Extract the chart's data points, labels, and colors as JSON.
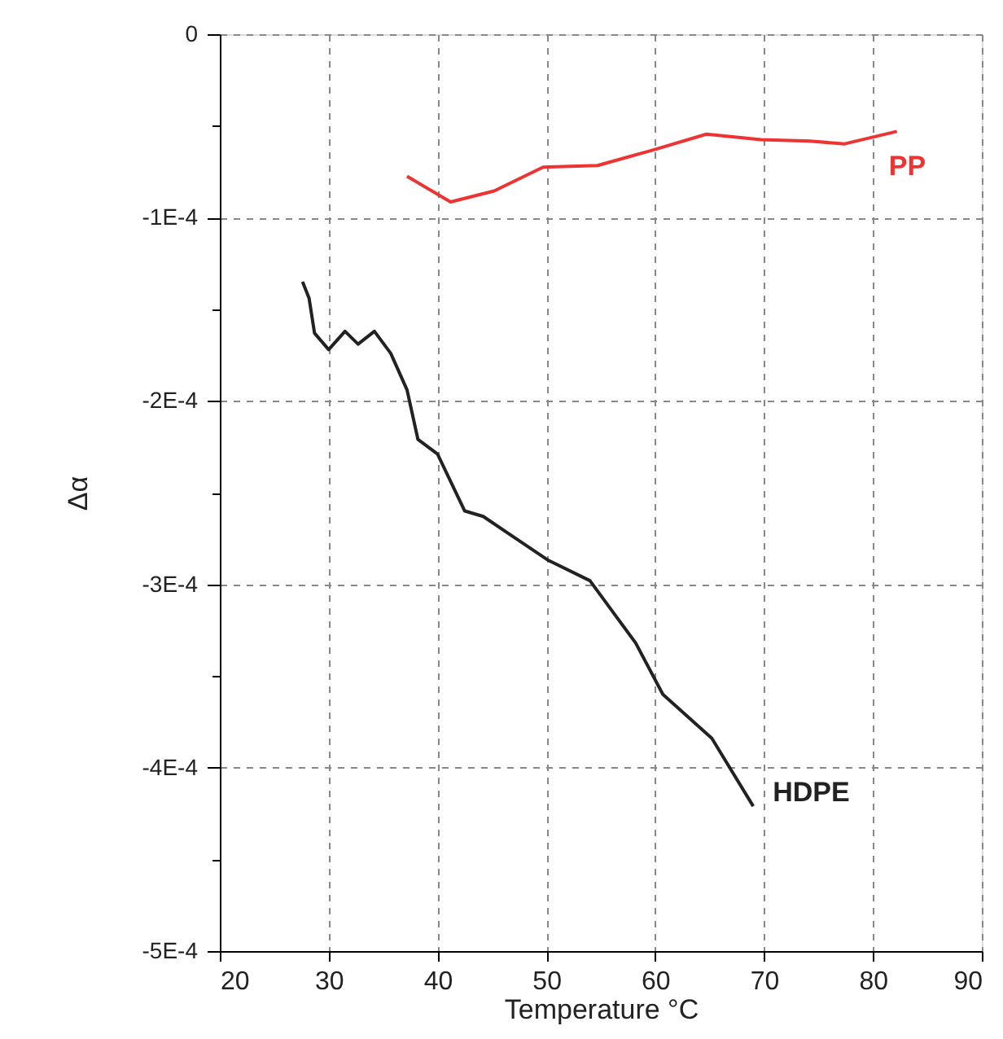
{
  "chart_data": {
    "type": "line",
    "xlabel": "Temperature °C",
    "ylabel": "Δα",
    "xlim": [
      20,
      90
    ],
    "xticks": [
      20,
      30,
      40,
      50,
      60,
      70,
      80,
      90
    ],
    "ylim": [
      -0.0005,
      0
    ],
    "yticks": [
      {
        "value": 0,
        "label": "0"
      },
      {
        "value": -5e-05,
        "label": null
      },
      {
        "value": -0.0001,
        "label": "-1E-4"
      },
      {
        "value": -0.00015,
        "label": null
      },
      {
        "value": -0.0002,
        "label": "-2E-4"
      },
      {
        "value": -0.00025,
        "label": null
      },
      {
        "value": -0.0003,
        "label": "-3E-4"
      },
      {
        "value": -0.00035,
        "label": null
      },
      {
        "value": -0.0004,
        "label": "-4E-4"
      },
      {
        "value": -0.00045,
        "label": null
      },
      {
        "value": -0.0005,
        "label": "-5E-4"
      }
    ],
    "grid": true,
    "marker": "none",
    "line_style": "solid",
    "series": [
      {
        "name": "PP",
        "color": "#ee3333",
        "x": [
          37.2,
          41.2,
          45.2,
          49.7,
          54.7,
          59.7,
          64.7,
          69.7,
          74.2,
          77.4,
          82.2
        ],
        "values": [
          -7.75e-05,
          -9.15e-05,
          -8.55e-05,
          -7.25e-05,
          -7.16e-05,
          -6.33e-05,
          -5.45e-05,
          -5.75e-05,
          -5.83e-05,
          -5.98e-05,
          -5.3e-05
        ]
      },
      {
        "name": "HDPE",
        "color": "#222222",
        "x": [
          27.6,
          28.2,
          28.7,
          30.0,
          31.5,
          32.7,
          34.2,
          35.7,
          37.2,
          38.2,
          40.0,
          42.5,
          44.2,
          46.7,
          50.2,
          54.0,
          58.2,
          60.7,
          65.2,
          69.0
        ],
        "values": [
          -0.000135,
          -0.000144,
          -0.000163,
          -0.000172,
          -0.000162,
          -0.000169,
          -0.000162,
          -0.000174,
          -0.000194,
          -0.000221,
          -0.000229,
          -0.00026,
          -0.000263,
          -0.000273,
          -0.000287,
          -0.000298,
          -0.000332,
          -0.00036,
          -0.000384,
          -0.000421
        ]
      }
    ]
  }
}
